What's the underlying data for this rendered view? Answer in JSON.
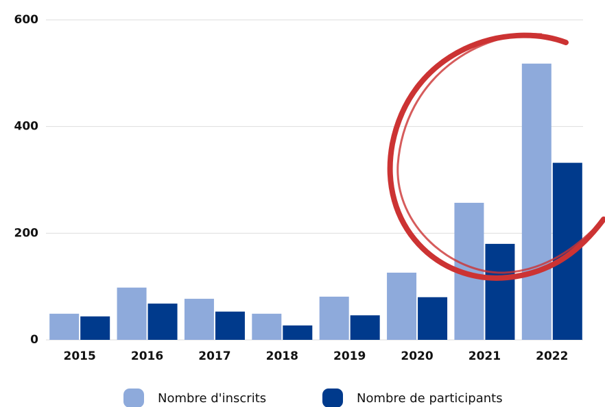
{
  "chart_data": {
    "type": "bar",
    "categories": [
      "2015",
      "2016",
      "2017",
      "2018",
      "2019",
      "2020",
      "2021",
      "2022"
    ],
    "series": [
      {
        "name": "Nombre d'inscrits",
        "color": "#8eaadb",
        "values": [
          49,
          98,
          77,
          49,
          81,
          126,
          257,
          518
        ]
      },
      {
        "name": "Nombre de participants",
        "color": "#003a8c",
        "values": [
          44,
          68,
          53,
          27,
          46,
          80,
          180,
          332
        ]
      }
    ],
    "ylim": [
      0,
      600
    ],
    "yticks": [
      0,
      200,
      400,
      600
    ],
    "grid": true
  }
}
